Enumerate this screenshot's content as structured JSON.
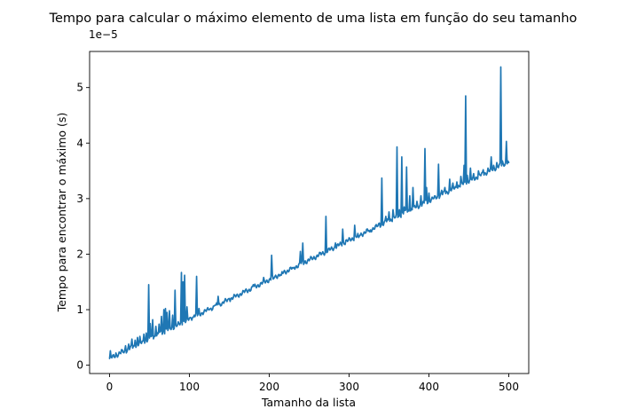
{
  "chart_data": {
    "type": "line",
    "title": "Tempo para calcular o máximo elemento de uma lista em função do seu tamanho",
    "xlabel": "Tamanho da lista",
    "ylabel": "Tempo para encontrar o máximo (s)",
    "y_offset_label": "1e−5",
    "xlim": [
      -25,
      525
    ],
    "ylim": [
      -0.15,
      5.65
    ],
    "x_ticks": [
      0,
      100,
      200,
      300,
      400,
      500
    ],
    "x_tick_labels": [
      "0",
      "100",
      "200",
      "300",
      "400",
      "500"
    ],
    "y_ticks": [
      0,
      1,
      2,
      3,
      4,
      5
    ],
    "y_tick_labels": [
      "0",
      "1",
      "2",
      "3",
      "4",
      "5"
    ],
    "grid": false,
    "color": "#1f77b4",
    "series": [
      {
        "x_start": 0,
        "x_step": 1,
        "baseline_start": 0.12,
        "baseline_slope": 0.0071,
        "values_note_unused": "",
        "spikes": [
          [
            1,
            0.26
          ],
          [
            2,
            0.14
          ],
          [
            8,
            0.22
          ],
          [
            15,
            0.28
          ],
          [
            20,
            0.35
          ],
          [
            24,
            0.38
          ],
          [
            28,
            0.47
          ],
          [
            32,
            0.45
          ],
          [
            35,
            0.5
          ],
          [
            38,
            0.52
          ],
          [
            43,
            0.56
          ],
          [
            46,
            0.58
          ],
          [
            49,
            1.45
          ],
          [
            51,
            0.75
          ],
          [
            54,
            0.82
          ],
          [
            58,
            0.7
          ],
          [
            62,
            0.74
          ],
          [
            65,
            0.88
          ],
          [
            68,
            1.0
          ],
          [
            70,
            1.02
          ],
          [
            72,
            0.95
          ],
          [
            75,
            0.98
          ],
          [
            79,
            0.9
          ],
          [
            82,
            1.35
          ],
          [
            85,
            0.72
          ],
          [
            90,
            1.67
          ],
          [
            92,
            1.5
          ],
          [
            94,
            1.62
          ],
          [
            97,
            1.05
          ],
          [
            102,
            0.85
          ],
          [
            106,
            0.9
          ],
          [
            109,
            1.6
          ],
          [
            112,
            1.02
          ],
          [
            118,
            0.95
          ],
          [
            125,
            1.0
          ],
          [
            132,
            1.08
          ],
          [
            136,
            1.24
          ],
          [
            141,
            1.12
          ],
          [
            150,
            1.2
          ],
          [
            160,
            1.28
          ],
          [
            170,
            1.35
          ],
          [
            180,
            1.45
          ],
          [
            193,
            1.58
          ],
          [
            203,
            1.98
          ],
          [
            205,
            1.55
          ],
          [
            215,
            1.62
          ],
          [
            225,
            1.7
          ],
          [
            230,
            1.75
          ],
          [
            239,
            2.05
          ],
          [
            242,
            2.2
          ],
          [
            245,
            1.88
          ],
          [
            255,
            1.92
          ],
          [
            262,
            1.98
          ],
          [
            271,
            2.68
          ],
          [
            274,
            2.1
          ],
          [
            283,
            2.2
          ],
          [
            292,
            2.45
          ],
          [
            296,
            2.25
          ],
          [
            307,
            2.52
          ],
          [
            312,
            2.3
          ],
          [
            322,
            2.45
          ],
          [
            326,
            2.4
          ],
          [
            338,
            2.56
          ],
          [
            341,
            3.37
          ],
          [
            346,
            2.68
          ],
          [
            350,
            2.76
          ],
          [
            355,
            2.8
          ],
          [
            360,
            3.93
          ],
          [
            363,
            2.8
          ],
          [
            366,
            3.75
          ],
          [
            369,
            2.85
          ],
          [
            372,
            3.57
          ],
          [
            376,
            3.05
          ],
          [
            380,
            3.2
          ],
          [
            385,
            2.95
          ],
          [
            390,
            3.05
          ],
          [
            395,
            3.9
          ],
          [
            397,
            3.2
          ],
          [
            400,
            3.1
          ],
          [
            406,
            3.0
          ],
          [
            412,
            3.62
          ],
          [
            416,
            3.15
          ],
          [
            420,
            3.2
          ],
          [
            426,
            3.35
          ],
          [
            430,
            3.28
          ],
          [
            435,
            3.3
          ],
          [
            440,
            3.4
          ],
          [
            444,
            3.6
          ],
          [
            446,
            4.85
          ],
          [
            448,
            3.42
          ],
          [
            452,
            3.55
          ],
          [
            456,
            3.45
          ],
          [
            462,
            3.5
          ],
          [
            468,
            3.52
          ],
          [
            474,
            3.55
          ],
          [
            478,
            3.75
          ],
          [
            481,
            3.6
          ],
          [
            485,
            3.65
          ],
          [
            490,
            5.37
          ],
          [
            492,
            3.68
          ],
          [
            495,
            3.6
          ],
          [
            497,
            4.03
          ],
          [
            500,
            3.65
          ]
        ]
      }
    ]
  }
}
